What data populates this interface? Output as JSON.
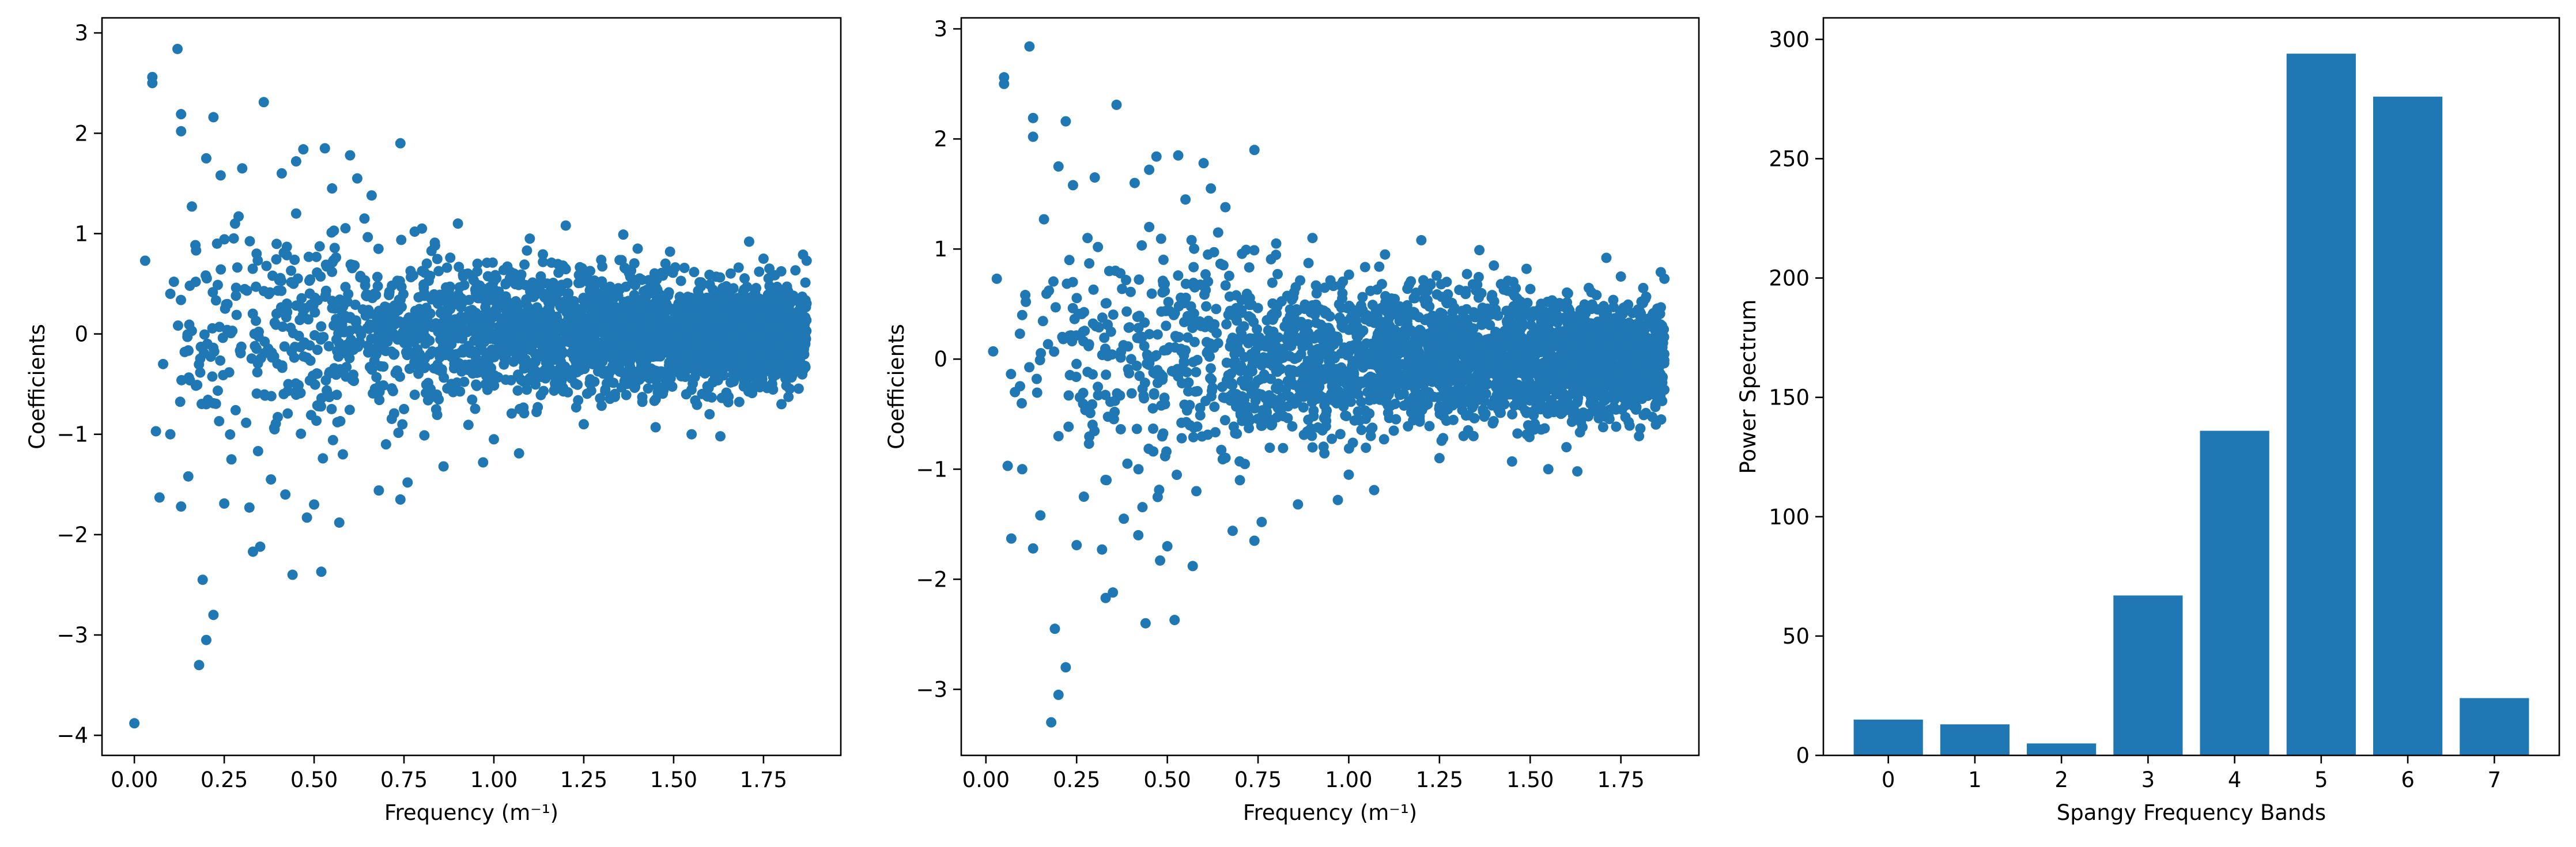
{
  "colors": {
    "series": "#1f77b4",
    "axes": "#000000",
    "background": "#ffffff"
  },
  "chart_data": [
    {
      "type": "scatter",
      "title": "",
      "xlabel": "Frequency (m⁻¹)",
      "ylabel": "Coefficients",
      "xlim": [
        -0.09,
        1.965
      ],
      "ylim": [
        -4.2,
        3.15
      ],
      "xticks": [
        0.0,
        0.25,
        0.5,
        0.75,
        1.0,
        1.25,
        1.5,
        1.75
      ],
      "xtick_labels": [
        "0.00",
        "0.25",
        "0.50",
        "0.75",
        "1.00",
        "1.25",
        "1.50",
        "1.75"
      ],
      "yticks": [
        -4,
        -3,
        -2,
        -1,
        0,
        1,
        2,
        3
      ],
      "ytick_labels": [
        "−4",
        "−3",
        "−2",
        "−1",
        "0",
        "1",
        "2",
        "3"
      ],
      "grid": false,
      "points": [
        [
          0.0,
          -3.88
        ],
        [
          0.03,
          0.73
        ],
        [
          0.05,
          2.56
        ],
        [
          0.05,
          2.5
        ],
        [
          0.06,
          -0.97
        ],
        [
          0.07,
          -1.63
        ],
        [
          0.1,
          -1.0
        ],
        [
          0.12,
          2.84
        ],
        [
          0.13,
          2.19
        ],
        [
          0.13,
          2.02
        ],
        [
          0.18,
          -3.3
        ],
        [
          0.19,
          -2.45
        ],
        [
          0.2,
          -3.05
        ],
        [
          0.22,
          -2.8
        ],
        [
          0.2,
          1.75
        ],
        [
          0.22,
          2.16
        ],
        [
          0.24,
          1.58
        ],
        [
          0.36,
          2.31
        ],
        [
          0.33,
          -2.17
        ],
        [
          0.35,
          -2.12
        ],
        [
          0.44,
          -2.4
        ],
        [
          0.52,
          -2.37
        ],
        [
          0.53,
          1.85
        ],
        [
          0.47,
          1.84
        ],
        [
          0.6,
          1.78
        ],
        [
          0.74,
          1.9
        ],
        [
          0.57,
          -1.88
        ],
        [
          0.48,
          -1.83
        ],
        [
          0.32,
          -1.73
        ],
        [
          0.13,
          -1.72
        ],
        [
          0.25,
          -1.69
        ],
        [
          0.68,
          -1.56
        ],
        [
          0.76,
          -1.48
        ],
        [
          0.74,
          -1.65
        ],
        [
          0.86,
          -1.32
        ],
        [
          0.97,
          -1.28
        ],
        [
          1.07,
          -1.19
        ],
        [
          1.2,
          1.08
        ],
        [
          1.36,
          0.99
        ],
        [
          1.49,
          0.82
        ],
        [
          1.55,
          -1.0
        ],
        [
          1.63,
          -1.02
        ],
        [
          1.71,
          0.92
        ],
        [
          1.86,
          0.79
        ],
        [
          1.87,
          0.73
        ],
        [
          1.45,
          -0.93
        ],
        [
          0.3,
          1.65
        ],
        [
          0.41,
          1.6
        ],
        [
          0.45,
          1.72
        ],
        [
          0.55,
          1.45
        ],
        [
          0.62,
          1.55
        ],
        [
          0.66,
          1.38
        ],
        [
          0.42,
          -1.6
        ],
        [
          0.5,
          -1.7
        ],
        [
          0.38,
          -1.45
        ],
        [
          0.27,
          -1.25
        ],
        [
          0.16,
          1.27
        ],
        [
          0.15,
          -1.42
        ],
        [
          0.1,
          0.4
        ],
        [
          0.08,
          -0.3
        ],
        [
          0.11,
          0.52
        ],
        [
          0.14,
          -0.18
        ],
        [
          0.2,
          -0.7
        ],
        [
          0.23,
          0.9
        ],
        [
          0.28,
          1.1
        ],
        [
          0.34,
          0.8
        ],
        [
          0.39,
          -0.95
        ],
        [
          0.45,
          1.2
        ],
        [
          0.58,
          -1.2
        ],
        [
          0.64,
          1.15
        ],
        [
          0.7,
          -1.1
        ],
        [
          0.8,
          1.05
        ],
        [
          0.9,
          1.1
        ],
        [
          1.0,
          -1.05
        ],
        [
          1.1,
          0.95
        ],
        [
          1.25,
          -0.9
        ],
        [
          1.4,
          0.85
        ],
        [
          1.6,
          -0.8
        ],
        [
          1.75,
          0.75
        ],
        [
          1.8,
          -0.7
        ]
      ],
      "bulk_envelope": [
        [
          0.05,
          -0.55,
          0.55
        ],
        [
          0.15,
          -0.85,
          0.85
        ],
        [
          0.3,
          -1.05,
          1.05
        ],
        [
          0.45,
          -1.1,
          1.1
        ],
        [
          0.6,
          -1.0,
          1.0
        ],
        [
          0.75,
          -0.85,
          0.85
        ],
        [
          0.9,
          -0.75,
          0.75
        ],
        [
          1.05,
          -0.7,
          0.7
        ],
        [
          1.2,
          -0.65,
          0.65
        ],
        [
          1.35,
          -0.62,
          0.62
        ],
        [
          1.5,
          -0.58,
          0.58
        ],
        [
          1.65,
          -0.55,
          0.55
        ],
        [
          1.8,
          -0.52,
          0.52
        ],
        [
          1.87,
          -0.5,
          0.5
        ]
      ]
    },
    {
      "type": "scatter",
      "title": "",
      "xlabel": "Frequency (m⁻¹)",
      "ylabel": "Coefficients",
      "xlim": [
        -0.068,
        1.965
      ],
      "ylim": [
        -3.6,
        3.1
      ],
      "xticks": [
        0.0,
        0.25,
        0.5,
        0.75,
        1.0,
        1.25,
        1.5,
        1.75
      ],
      "xtick_labels": [
        "0.00",
        "0.25",
        "0.50",
        "0.75",
        "1.00",
        "1.25",
        "1.50",
        "1.75"
      ],
      "yticks": [
        -3,
        -2,
        -1,
        0,
        1,
        2,
        3
      ],
      "ytick_labels": [
        "−3",
        "−2",
        "−1",
        "0",
        "1",
        "2",
        "3"
      ],
      "grid": false,
      "points": [
        [
          0.02,
          0.07
        ],
        [
          0.03,
          0.73
        ],
        [
          0.05,
          2.56
        ],
        [
          0.05,
          2.5
        ],
        [
          0.06,
          -0.97
        ],
        [
          0.07,
          -1.63
        ],
        [
          0.1,
          -1.0
        ],
        [
          0.12,
          2.84
        ],
        [
          0.13,
          2.19
        ],
        [
          0.13,
          2.02
        ],
        [
          0.18,
          -3.3
        ],
        [
          0.19,
          -2.45
        ],
        [
          0.2,
          -3.05
        ],
        [
          0.22,
          -2.8
        ],
        [
          0.2,
          1.75
        ],
        [
          0.22,
          2.16
        ],
        [
          0.24,
          1.58
        ],
        [
          0.36,
          2.31
        ],
        [
          0.33,
          -2.17
        ],
        [
          0.35,
          -2.12
        ],
        [
          0.44,
          -2.4
        ],
        [
          0.52,
          -2.37
        ],
        [
          0.53,
          1.85
        ],
        [
          0.47,
          1.84
        ],
        [
          0.6,
          1.78
        ],
        [
          0.74,
          1.9
        ],
        [
          0.57,
          -1.88
        ],
        [
          0.48,
          -1.83
        ],
        [
          0.32,
          -1.73
        ],
        [
          0.13,
          -1.72
        ],
        [
          0.25,
          -1.69
        ],
        [
          0.68,
          -1.56
        ],
        [
          0.76,
          -1.48
        ],
        [
          0.74,
          -1.65
        ],
        [
          0.86,
          -1.32
        ],
        [
          0.97,
          -1.28
        ],
        [
          1.07,
          -1.19
        ],
        [
          1.2,
          1.08
        ],
        [
          1.36,
          0.99
        ],
        [
          1.49,
          0.82
        ],
        [
          1.55,
          -1.0
        ],
        [
          1.63,
          -1.02
        ],
        [
          1.71,
          0.92
        ],
        [
          1.86,
          0.79
        ],
        [
          1.87,
          0.73
        ],
        [
          1.45,
          -0.93
        ],
        [
          0.3,
          1.65
        ],
        [
          0.41,
          1.6
        ],
        [
          0.45,
          1.72
        ],
        [
          0.55,
          1.45
        ],
        [
          0.62,
          1.55
        ],
        [
          0.66,
          1.38
        ],
        [
          0.42,
          -1.6
        ],
        [
          0.5,
          -1.7
        ],
        [
          0.38,
          -1.45
        ],
        [
          0.27,
          -1.25
        ],
        [
          0.16,
          1.27
        ],
        [
          0.15,
          -1.42
        ],
        [
          0.1,
          0.4
        ],
        [
          0.08,
          -0.3
        ],
        [
          0.11,
          0.52
        ],
        [
          0.14,
          -0.18
        ],
        [
          0.2,
          -0.7
        ],
        [
          0.23,
          0.9
        ],
        [
          0.28,
          1.1
        ],
        [
          0.34,
          0.8
        ],
        [
          0.39,
          -0.95
        ],
        [
          0.45,
          1.2
        ],
        [
          0.58,
          -1.2
        ],
        [
          0.64,
          1.15
        ],
        [
          0.7,
          -1.1
        ],
        [
          0.8,
          1.05
        ],
        [
          0.9,
          1.1
        ],
        [
          1.0,
          -1.05
        ],
        [
          1.1,
          0.95
        ],
        [
          1.25,
          -0.9
        ],
        [
          1.4,
          0.85
        ],
        [
          1.6,
          -0.8
        ],
        [
          1.75,
          0.75
        ],
        [
          1.8,
          -0.7
        ]
      ],
      "bulk_envelope": [
        [
          0.05,
          -0.55,
          0.55
        ],
        [
          0.15,
          -0.85,
          0.85
        ],
        [
          0.3,
          -1.05,
          1.05
        ],
        [
          0.45,
          -1.1,
          1.1
        ],
        [
          0.6,
          -1.0,
          1.0
        ],
        [
          0.75,
          -0.85,
          0.85
        ],
        [
          0.9,
          -0.75,
          0.75
        ],
        [
          1.05,
          -0.7,
          0.7
        ],
        [
          1.2,
          -0.65,
          0.65
        ],
        [
          1.35,
          -0.62,
          0.62
        ],
        [
          1.5,
          -0.58,
          0.58
        ],
        [
          1.65,
          -0.55,
          0.55
        ],
        [
          1.8,
          -0.52,
          0.52
        ],
        [
          1.87,
          -0.5,
          0.5
        ]
      ]
    },
    {
      "type": "bar",
      "title": "",
      "xlabel": "Spangy Frequency Bands",
      "ylabel": "Power Spectrum",
      "categories": [
        "0",
        "1",
        "2",
        "3",
        "4",
        "5",
        "6",
        "7"
      ],
      "values": [
        15,
        13,
        5,
        67,
        136,
        294,
        276,
        24
      ],
      "xlim": [
        -0.75,
        7.75
      ],
      "ylim": [
        0,
        309
      ],
      "yticks": [
        0,
        50,
        100,
        150,
        200,
        250,
        300
      ],
      "ytick_labels": [
        "0",
        "50",
        "100",
        "150",
        "200",
        "250",
        "300"
      ],
      "grid": false
    }
  ]
}
